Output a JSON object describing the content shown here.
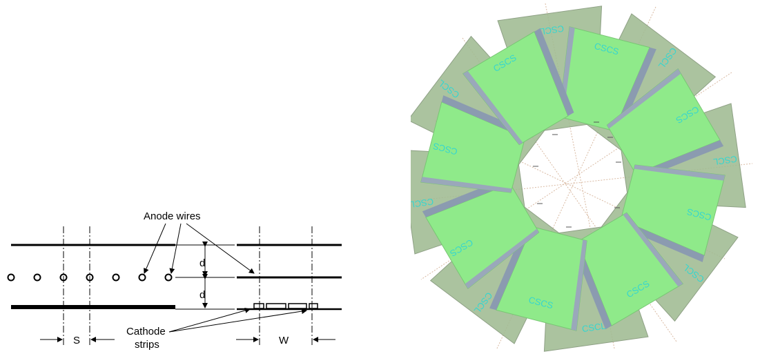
{
  "schematic": {
    "anode_label": "Anode wires",
    "cathode_label_line1": "Cathode",
    "cathode_label_line2": "strips",
    "gap_label_upper": "d",
    "gap_label_lower": "d",
    "wire_spacing_label": "S",
    "strip_width_label": "W"
  },
  "wheel": {
    "chamber_labels": [
      "CSCS",
      "CSCS",
      "CSCS",
      "CSCS",
      "CSCS",
      "CSCS",
      "CSCS",
      "CSCS",
      "CSCL",
      "CSCL",
      "CSCL",
      "CSCL",
      "CSCL",
      "CSCL",
      "CSCL",
      "CSCL"
    ],
    "colors": {
      "large_chamber": "#9fbb92",
      "small_chamber": "#8fea8a",
      "chamber_edge": "#7f8fa6",
      "label": "#35d6cf",
      "guide_line": "#d8b8a0"
    }
  }
}
